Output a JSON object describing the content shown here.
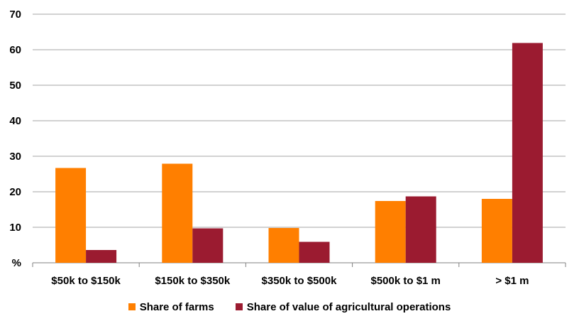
{
  "chart_data": {
    "type": "bar",
    "categories": [
      "$50k to $150k",
      "$150k to $350k",
      "$350k to $500k",
      "$500k to $1 m",
      "> $1 m"
    ],
    "series": [
      {
        "name": "Share of farms",
        "values": [
          26.7,
          27.9,
          9.8,
          17.4,
          18.0
        ],
        "color": "#FF7F00"
      },
      {
        "name": "Share of value of agricultural operations",
        "values": [
          3.6,
          9.7,
          5.9,
          18.7,
          61.9
        ],
        "color": "#9B1B30"
      }
    ],
    "title": "",
    "xlabel": "",
    "ylabel": "%",
    "ylim": [
      0,
      70
    ],
    "yticks": [
      "%",
      "10",
      "20",
      "30",
      "40",
      "50",
      "60",
      "70"
    ],
    "grid": true,
    "legend_position": "bottom"
  }
}
